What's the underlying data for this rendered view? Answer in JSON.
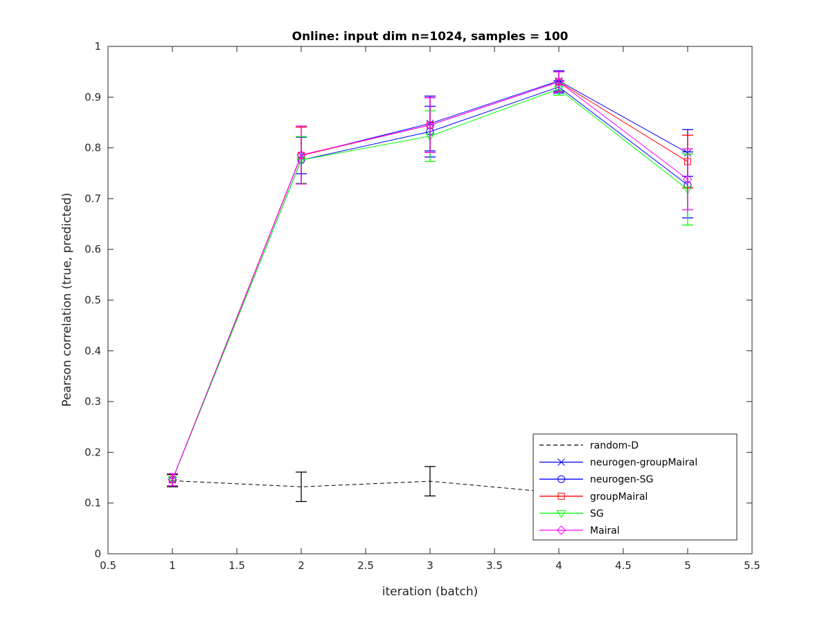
{
  "chart_data": {
    "type": "line",
    "title": "Online:  input dim n=1024, samples = 100",
    "xlabel": "iteration (batch)",
    "ylabel": "Pearson correlation (true, predicted)",
    "xlim": [
      0.5,
      5.5
    ],
    "ylim": [
      0,
      1
    ],
    "xticks": [
      "0.5",
      "1",
      "1.5",
      "2",
      "2.5",
      "3",
      "3.5",
      "4",
      "4.5",
      "5",
      "5.5"
    ],
    "yticks": [
      "0",
      "0.1",
      "0.2",
      "0.3",
      "0.4",
      "0.5",
      "0.6",
      "0.7",
      "0.8",
      "0.9",
      "1"
    ],
    "grid": false,
    "legend_position": "bottom-right",
    "x": [
      1,
      2,
      3,
      4,
      5
    ],
    "series": [
      {
        "name": "random-D",
        "color": "#000000",
        "line_style": "dashed",
        "marker": "none",
        "values": [
          0.144,
          0.132,
          0.143,
          0.12,
          0.12
        ],
        "errors": [
          0.012,
          0.029,
          0.029,
          0.0,
          0.0
        ]
      },
      {
        "name": "neurogen-groupMairal",
        "color": "#0000ff",
        "line_style": "solid",
        "marker": "x",
        "values": [
          0.146,
          0.785,
          0.848,
          0.932,
          0.79
        ],
        "errors": [
          0.012,
          0.036,
          0.054,
          0.02,
          0.046
        ]
      },
      {
        "name": "neurogen-SG",
        "color": "#0000ff",
        "line_style": "solid",
        "marker": "circle",
        "values": [
          0.146,
          0.776,
          0.832,
          0.92,
          0.727
        ],
        "errors": [
          0.012,
          0.046,
          0.05,
          0.012,
          0.065
        ]
      },
      {
        "name": "groupMairal",
        "color": "#ff0000",
        "line_style": "solid",
        "marker": "square",
        "values": [
          0.146,
          0.785,
          0.845,
          0.93,
          0.773
        ],
        "errors": [
          0.012,
          0.056,
          0.054,
          0.02,
          0.052
        ]
      },
      {
        "name": "SG",
        "color": "#00ff00",
        "line_style": "solid",
        "marker": "triangle-down",
        "values": [
          0.146,
          0.776,
          0.823,
          0.916,
          0.718
        ],
        "errors": [
          0.012,
          0.046,
          0.05,
          0.012,
          0.07
        ]
      },
      {
        "name": "Mairal",
        "color": "#ff00ff",
        "line_style": "solid",
        "marker": "diamond",
        "values": [
          0.146,
          0.786,
          0.845,
          0.93,
          0.738
        ],
        "errors": [
          0.012,
          0.057,
          0.054,
          0.02,
          0.06
        ]
      }
    ]
  }
}
